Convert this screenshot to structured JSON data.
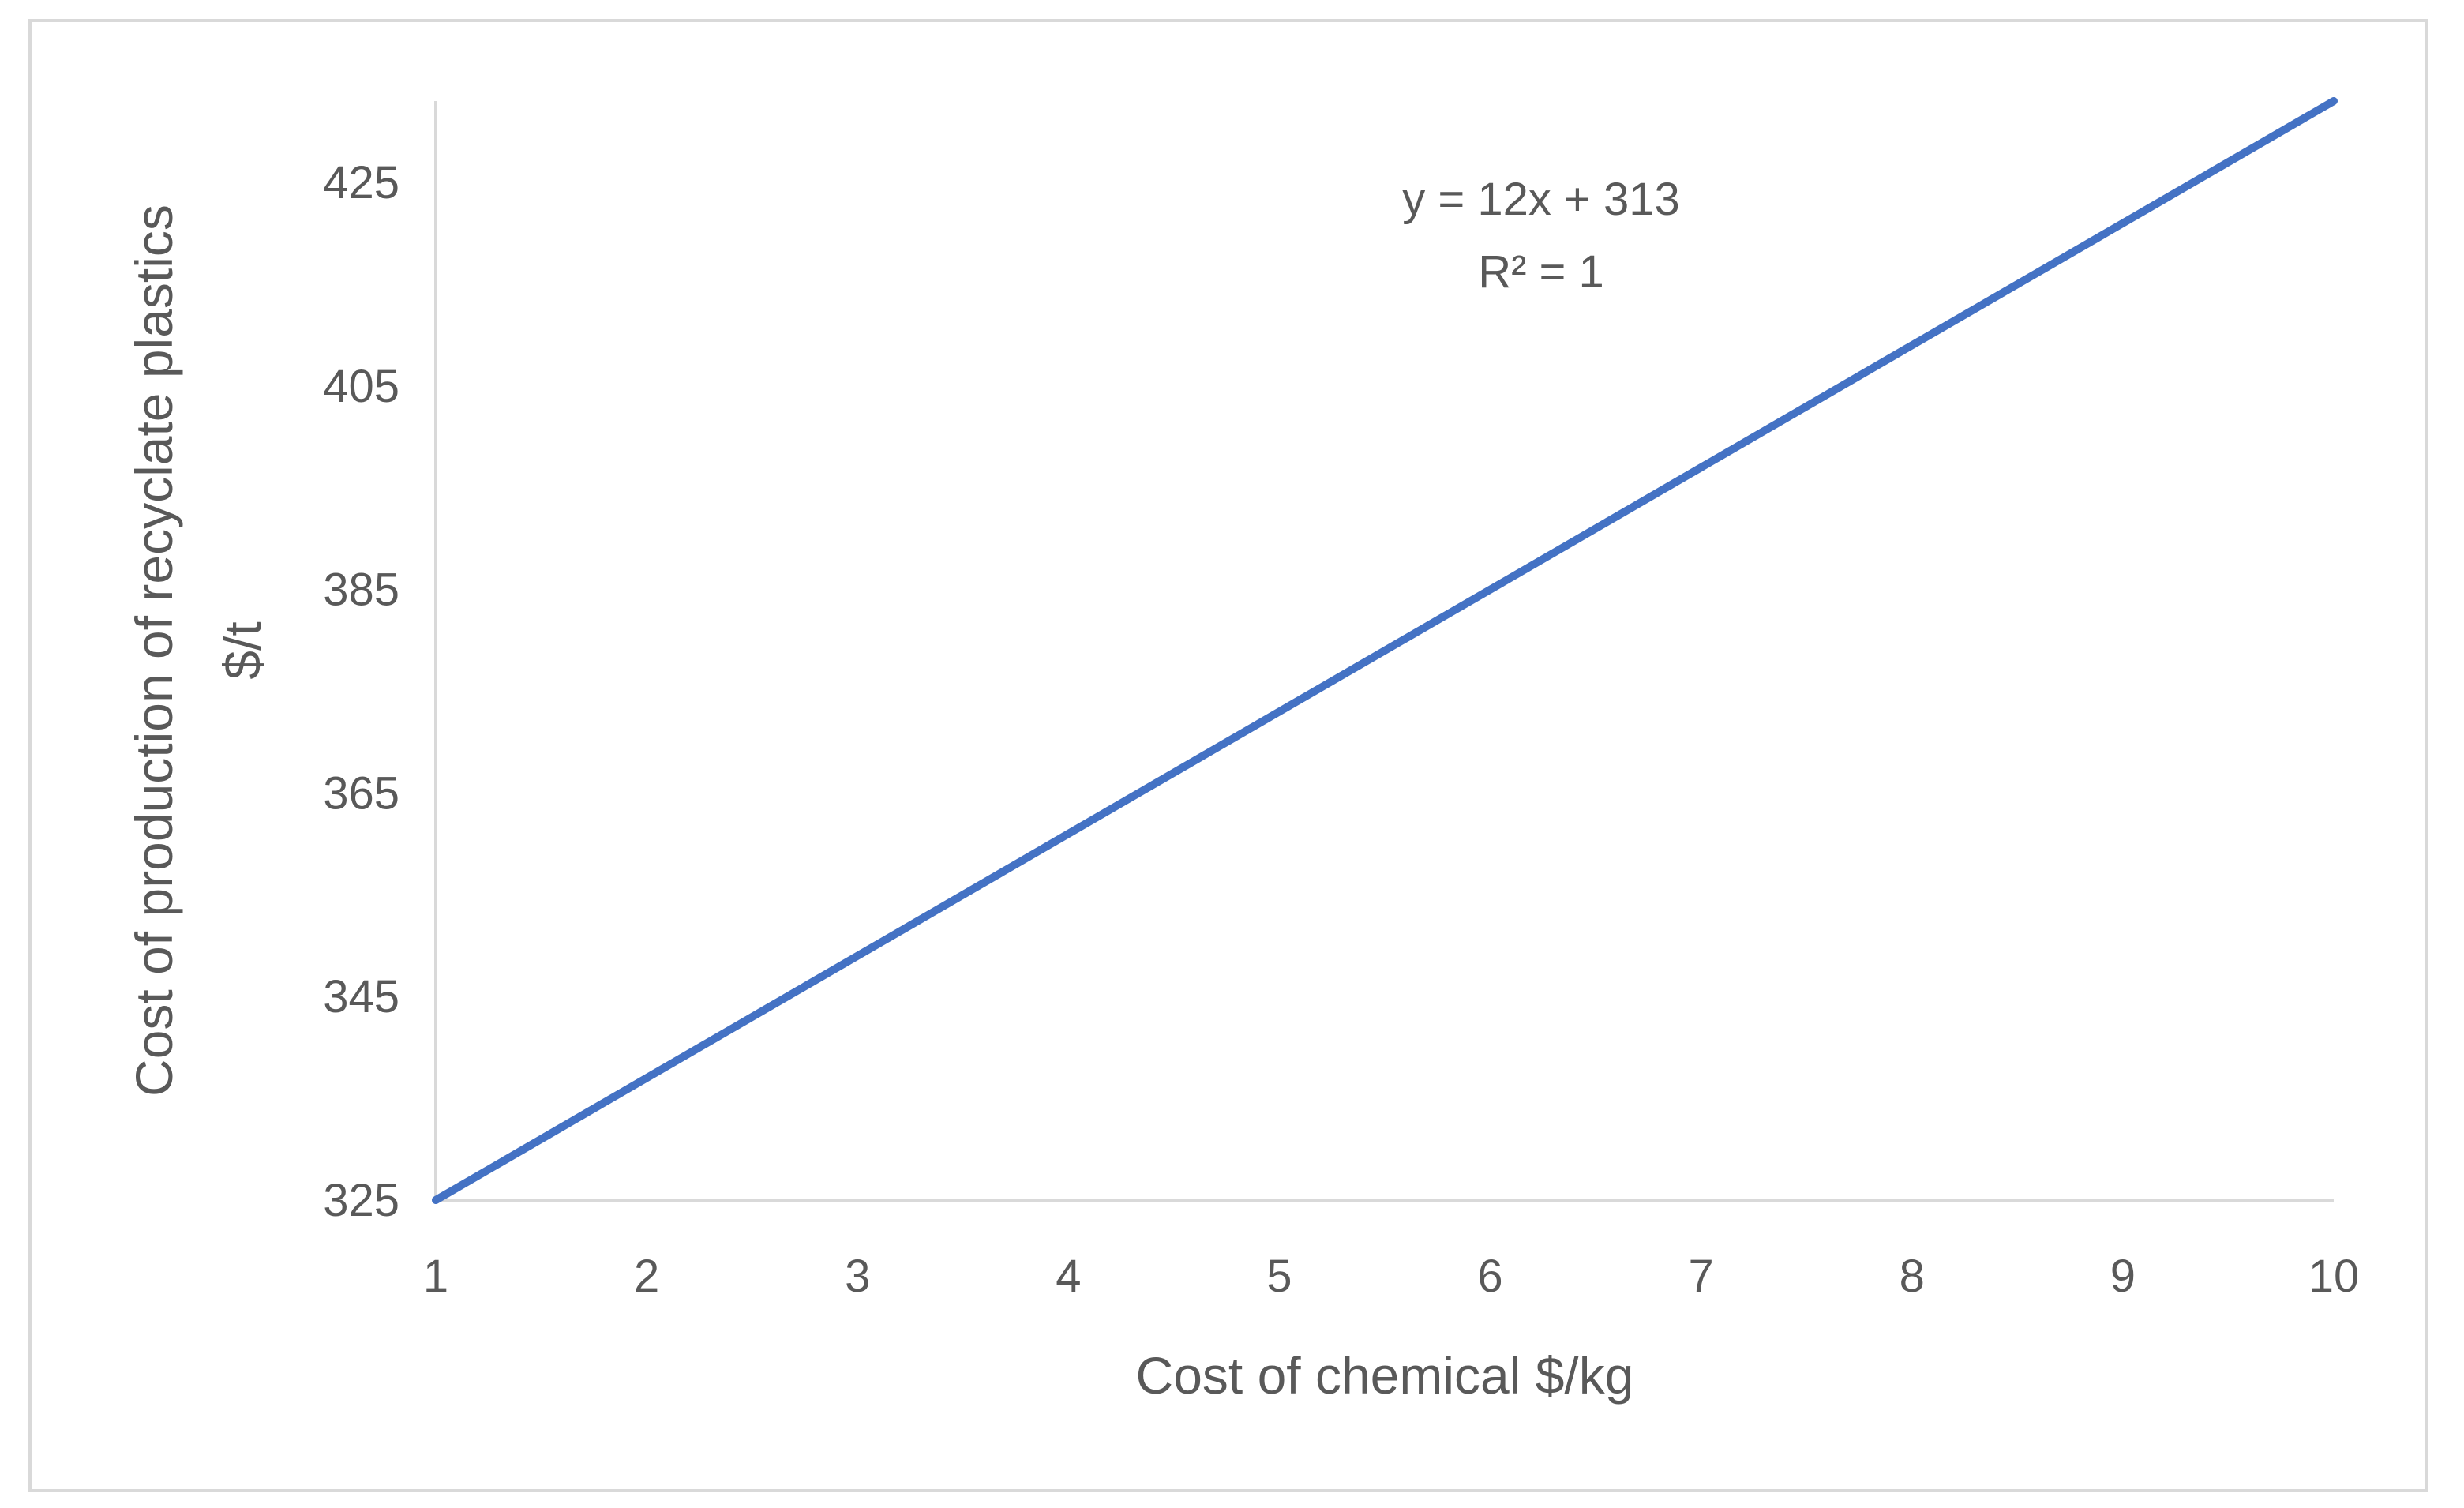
{
  "chart_data": {
    "type": "line",
    "title": "",
    "xlabel": "Cost of chemical $/kg",
    "ylabel_lines": [
      "Cost of production of recyclate plastics",
      "$/t"
    ],
    "x": [
      1,
      2,
      3,
      4,
      5,
      6,
      7,
      8,
      9,
      10
    ],
    "x_ticks": [
      "1",
      "2",
      "3",
      "4",
      "5",
      "6",
      "7",
      "8",
      "9",
      "10"
    ],
    "y_ticks": [
      "325",
      "345",
      "365",
      "385",
      "405",
      "425"
    ],
    "xlim": [
      1,
      10
    ],
    "ylim": [
      325,
      433
    ],
    "grid": false,
    "legend": "none",
    "series": [
      {
        "color": "#4472c4",
        "values": [
          325,
          337,
          349,
          361,
          373,
          385,
          397,
          409,
          421,
          433
        ]
      }
    ],
    "annotations": {
      "equation": "y = 12x + 313",
      "r_squared": "R² = 1"
    },
    "axis_color": "#d9d9d9",
    "text_color": "#595959"
  }
}
